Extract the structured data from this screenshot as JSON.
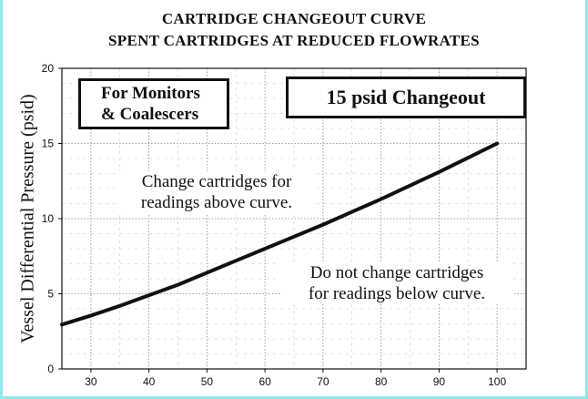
{
  "chart_data": {
    "type": "line",
    "title": "CARTRIDGE CHANGEOUT CURVE",
    "subtitle": "SPENT CARTRIDGES AT REDUCED FLOWRATES",
    "ylabel": "Vessel Differential Pressure (psid)",
    "xlabel": "",
    "xlim": [
      25,
      105
    ],
    "ylim": [
      0,
      20
    ],
    "x_ticks": [
      30,
      40,
      50,
      60,
      70,
      80,
      90,
      100
    ],
    "y_ticks": [
      0,
      5,
      10,
      15,
      20
    ],
    "grid": true,
    "series": [
      {
        "x": [
          25,
          30,
          35,
          40,
          45,
          50,
          55,
          60,
          65,
          70,
          75,
          80,
          85,
          90,
          95,
          100
        ],
        "y": [
          2.95,
          3.55,
          4.2,
          4.9,
          5.6,
          6.4,
          7.2,
          8.0,
          8.8,
          9.6,
          10.45,
          11.3,
          12.2,
          13.1,
          14.05,
          15.0
        ],
        "color": "#111111"
      }
    ],
    "annotations": {
      "box_monitors_line1": "For Monitors",
      "box_monitors_line2": "& Coalescers",
      "box_changeout": "15 psid Changeout",
      "note_above_line1": "Change cartridges for",
      "note_above_line2": "readings above curve.",
      "note_below_line1": "Do not change cartridges",
      "note_below_line2": "for readings below curve."
    }
  },
  "colors": {
    "frame": "#8fe8ea",
    "ink": "#111111",
    "grid": "#777777"
  }
}
